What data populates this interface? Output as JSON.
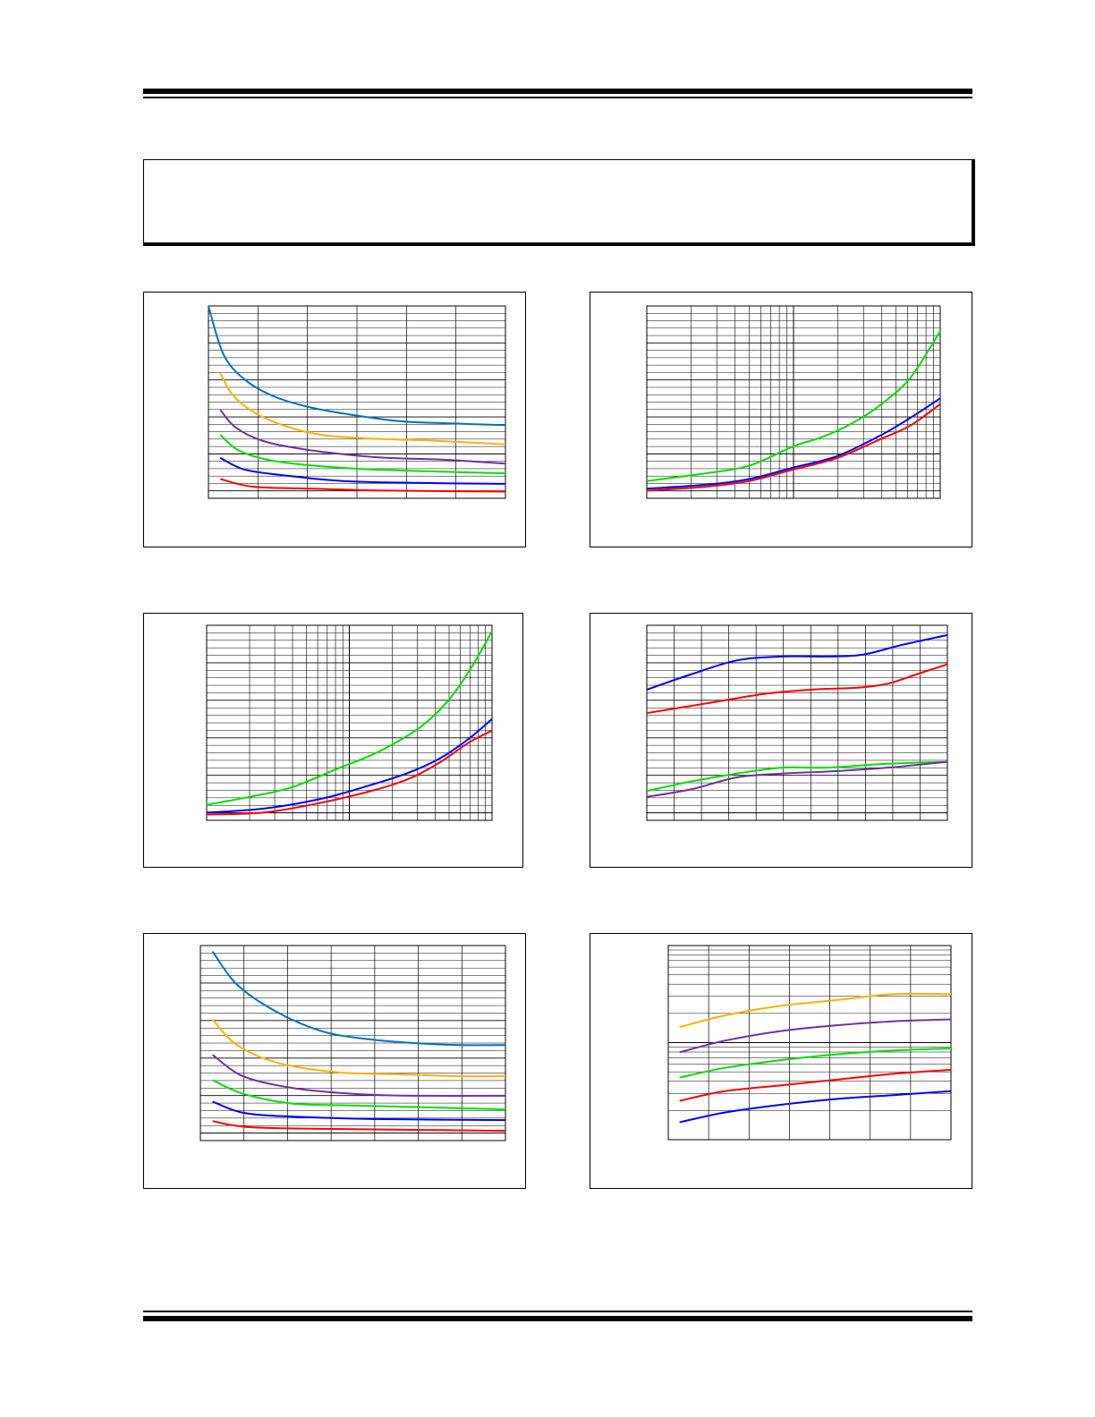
{
  "chart_data": [
    {
      "type": "line",
      "series": [
        {
          "color": "#0070C0",
          "values": [
            [
              0.0,
              1.0
            ],
            [
              0.05,
              0.75
            ],
            [
              0.12,
              0.62
            ],
            [
              0.22,
              0.53
            ],
            [
              0.35,
              0.47
            ],
            [
              0.5,
              0.43
            ],
            [
              0.65,
              0.4
            ],
            [
              0.8,
              0.39
            ],
            [
              1.0,
              0.38
            ]
          ]
        },
        {
          "color": "#FFB000",
          "values": [
            [
              0.04,
              0.65
            ],
            [
              0.08,
              0.54
            ],
            [
              0.15,
              0.45
            ],
            [
              0.25,
              0.38
            ],
            [
              0.38,
              0.33
            ],
            [
              0.55,
              0.31
            ],
            [
              0.75,
              0.3
            ],
            [
              1.0,
              0.28
            ]
          ]
        },
        {
          "color": "#7030A0",
          "values": [
            [
              0.04,
              0.46
            ],
            [
              0.09,
              0.37
            ],
            [
              0.18,
              0.3
            ],
            [
              0.3,
              0.26
            ],
            [
              0.45,
              0.23
            ],
            [
              0.6,
              0.21
            ],
            [
              0.8,
              0.2
            ],
            [
              1.0,
              0.18
            ]
          ]
        },
        {
          "color": "#00E000",
          "values": [
            [
              0.04,
              0.33
            ],
            [
              0.1,
              0.25
            ],
            [
              0.2,
              0.2
            ],
            [
              0.35,
              0.17
            ],
            [
              0.55,
              0.15
            ],
            [
              0.75,
              0.14
            ],
            [
              1.0,
              0.13
            ]
          ]
        },
        {
          "color": "#0000FF",
          "values": [
            [
              0.04,
              0.21
            ],
            [
              0.12,
              0.15
            ],
            [
              0.25,
              0.12
            ],
            [
              0.45,
              0.09
            ],
            [
              0.7,
              0.08
            ],
            [
              1.0,
              0.075
            ]
          ]
        },
        {
          "color": "#FF0000",
          "values": [
            [
              0.04,
              0.1
            ],
            [
              0.15,
              0.06
            ],
            [
              0.35,
              0.05
            ],
            [
              0.6,
              0.04
            ],
            [
              1.0,
              0.035
            ]
          ]
        }
      ]
    },
    {
      "type": "line",
      "series": [
        {
          "color": "#00E000",
          "values": [
            [
              0.0,
              0.09
            ],
            [
              0.2,
              0.13
            ],
            [
              0.35,
              0.17
            ],
            [
              0.5,
              0.27
            ],
            [
              0.6,
              0.32
            ],
            [
              0.7,
              0.39
            ],
            [
              0.8,
              0.49
            ],
            [
              0.9,
              0.63
            ],
            [
              1.0,
              0.87
            ]
          ]
        },
        {
          "color": "#0000FF",
          "values": [
            [
              0.0,
              0.05
            ],
            [
              0.2,
              0.07
            ],
            [
              0.35,
              0.1
            ],
            [
              0.5,
              0.16
            ],
            [
              0.65,
              0.22
            ],
            [
              0.8,
              0.33
            ],
            [
              0.9,
              0.42
            ],
            [
              1.0,
              0.52
            ]
          ]
        },
        {
          "color": "#FF0000",
          "values": [
            [
              0.0,
              0.04
            ],
            [
              0.2,
              0.06
            ],
            [
              0.35,
              0.09
            ],
            [
              0.5,
              0.15
            ],
            [
              0.65,
              0.21
            ],
            [
              0.8,
              0.31
            ],
            [
              0.9,
              0.38
            ],
            [
              1.0,
              0.49
            ]
          ]
        }
      ]
    },
    {
      "type": "line",
      "series": [
        {
          "color": "#00E000",
          "values": [
            [
              0.0,
              0.08
            ],
            [
              0.15,
              0.12
            ],
            [
              0.3,
              0.17
            ],
            [
              0.45,
              0.26
            ],
            [
              0.6,
              0.35
            ],
            [
              0.75,
              0.48
            ],
            [
              0.85,
              0.62
            ],
            [
              0.93,
              0.79
            ],
            [
              1.0,
              0.97
            ]
          ]
        },
        {
          "color": "#0000FF",
          "values": [
            [
              0.0,
              0.04
            ],
            [
              0.2,
              0.06
            ],
            [
              0.4,
              0.11
            ],
            [
              0.55,
              0.17
            ],
            [
              0.7,
              0.24
            ],
            [
              0.82,
              0.32
            ],
            [
              0.92,
              0.42
            ],
            [
              1.0,
              0.52
            ]
          ]
        },
        {
          "color": "#FF0000",
          "values": [
            [
              0.0,
              0.03
            ],
            [
              0.2,
              0.04
            ],
            [
              0.4,
              0.09
            ],
            [
              0.6,
              0.16
            ],
            [
              0.72,
              0.22
            ],
            [
              0.82,
              0.3
            ],
            [
              0.92,
              0.4
            ],
            [
              1.0,
              0.46
            ]
          ]
        }
      ]
    },
    {
      "type": "line",
      "series": [
        {
          "color": "#0000FF",
          "values": [
            [
              0.0,
              0.67
            ],
            [
              0.15,
              0.75
            ],
            [
              0.3,
              0.82
            ],
            [
              0.45,
              0.84
            ],
            [
              0.6,
              0.84
            ],
            [
              0.72,
              0.85
            ],
            [
              0.85,
              0.9
            ],
            [
              1.0,
              0.95
            ]
          ]
        },
        {
          "color": "#FF0000",
          "values": [
            [
              0.0,
              0.55
            ],
            [
              0.2,
              0.6
            ],
            [
              0.4,
              0.65
            ],
            [
              0.55,
              0.67
            ],
            [
              0.7,
              0.68
            ],
            [
              0.8,
              0.7
            ],
            [
              0.9,
              0.75
            ],
            [
              1.0,
              0.8
            ]
          ]
        },
        {
          "color": "#00E000",
          "values": [
            [
              0.0,
              0.15
            ],
            [
              0.15,
              0.2
            ],
            [
              0.3,
              0.24
            ],
            [
              0.45,
              0.27
            ],
            [
              0.6,
              0.27
            ],
            [
              0.8,
              0.29
            ],
            [
              1.0,
              0.3
            ]
          ]
        },
        {
          "color": "#7030A0",
          "values": [
            [
              0.0,
              0.12
            ],
            [
              0.15,
              0.16
            ],
            [
              0.3,
              0.22
            ],
            [
              0.45,
              0.24
            ],
            [
              0.6,
              0.25
            ],
            [
              0.8,
              0.27
            ],
            [
              1.0,
              0.3
            ]
          ]
        }
      ]
    },
    {
      "type": "line",
      "series": [
        {
          "color": "#0070C0",
          "values": [
            [
              0.04,
              0.97
            ],
            [
              0.12,
              0.8
            ],
            [
              0.25,
              0.66
            ],
            [
              0.4,
              0.56
            ],
            [
              0.55,
              0.52
            ],
            [
              0.7,
              0.5
            ],
            [
              0.85,
              0.49
            ],
            [
              1.0,
              0.49
            ]
          ]
        },
        {
          "color": "#FFB000",
          "values": [
            [
              0.04,
              0.62
            ],
            [
              0.12,
              0.49
            ],
            [
              0.25,
              0.4
            ],
            [
              0.45,
              0.35
            ],
            [
              0.65,
              0.34
            ],
            [
              0.85,
              0.33
            ],
            [
              1.0,
              0.33
            ]
          ]
        },
        {
          "color": "#7030A0",
          "values": [
            [
              0.04,
              0.44
            ],
            [
              0.14,
              0.33
            ],
            [
              0.3,
              0.27
            ],
            [
              0.5,
              0.24
            ],
            [
              0.7,
              0.23
            ],
            [
              1.0,
              0.23
            ]
          ]
        },
        {
          "color": "#00E000",
          "values": [
            [
              0.04,
              0.31
            ],
            [
              0.14,
              0.24
            ],
            [
              0.3,
              0.19
            ],
            [
              0.5,
              0.18
            ],
            [
              0.75,
              0.17
            ],
            [
              1.0,
              0.16
            ]
          ]
        },
        {
          "color": "#0000FF",
          "values": [
            [
              0.04,
              0.2
            ],
            [
              0.15,
              0.14
            ],
            [
              0.35,
              0.12
            ],
            [
              0.6,
              0.11
            ],
            [
              1.0,
              0.105
            ]
          ]
        },
        {
          "color": "#FF0000",
          "values": [
            [
              0.04,
              0.1
            ],
            [
              0.15,
              0.07
            ],
            [
              0.4,
              0.06
            ],
            [
              0.7,
              0.055
            ],
            [
              1.0,
              0.05
            ]
          ]
        }
      ]
    },
    {
      "type": "line",
      "series": [
        {
          "color": "#FFB000",
          "values": [
            [
              0.04,
              0.58
            ],
            [
              0.2,
              0.64
            ],
            [
              0.4,
              0.69
            ],
            [
              0.6,
              0.72
            ],
            [
              0.8,
              0.75
            ],
            [
              1.0,
              0.75
            ]
          ]
        },
        {
          "color": "#7030A0",
          "values": [
            [
              0.04,
              0.45
            ],
            [
              0.2,
              0.51
            ],
            [
              0.4,
              0.56
            ],
            [
              0.6,
              0.59
            ],
            [
              0.8,
              0.61
            ],
            [
              1.0,
              0.62
            ]
          ]
        },
        {
          "color": "#00E000",
          "values": [
            [
              0.04,
              0.32
            ],
            [
              0.2,
              0.37
            ],
            [
              0.4,
              0.41
            ],
            [
              0.6,
              0.44
            ],
            [
              0.8,
              0.46
            ],
            [
              1.0,
              0.47
            ]
          ]
        },
        {
          "color": "#FF0000",
          "values": [
            [
              0.04,
              0.2
            ],
            [
              0.2,
              0.25
            ],
            [
              0.4,
              0.28
            ],
            [
              0.6,
              0.31
            ],
            [
              0.8,
              0.34
            ],
            [
              1.0,
              0.36
            ]
          ]
        },
        {
          "color": "#0000FF",
          "values": [
            [
              0.04,
              0.09
            ],
            [
              0.2,
              0.14
            ],
            [
              0.4,
              0.18
            ],
            [
              0.6,
              0.21
            ],
            [
              0.8,
              0.23
            ],
            [
              1.0,
              0.25
            ]
          ]
        }
      ]
    }
  ]
}
